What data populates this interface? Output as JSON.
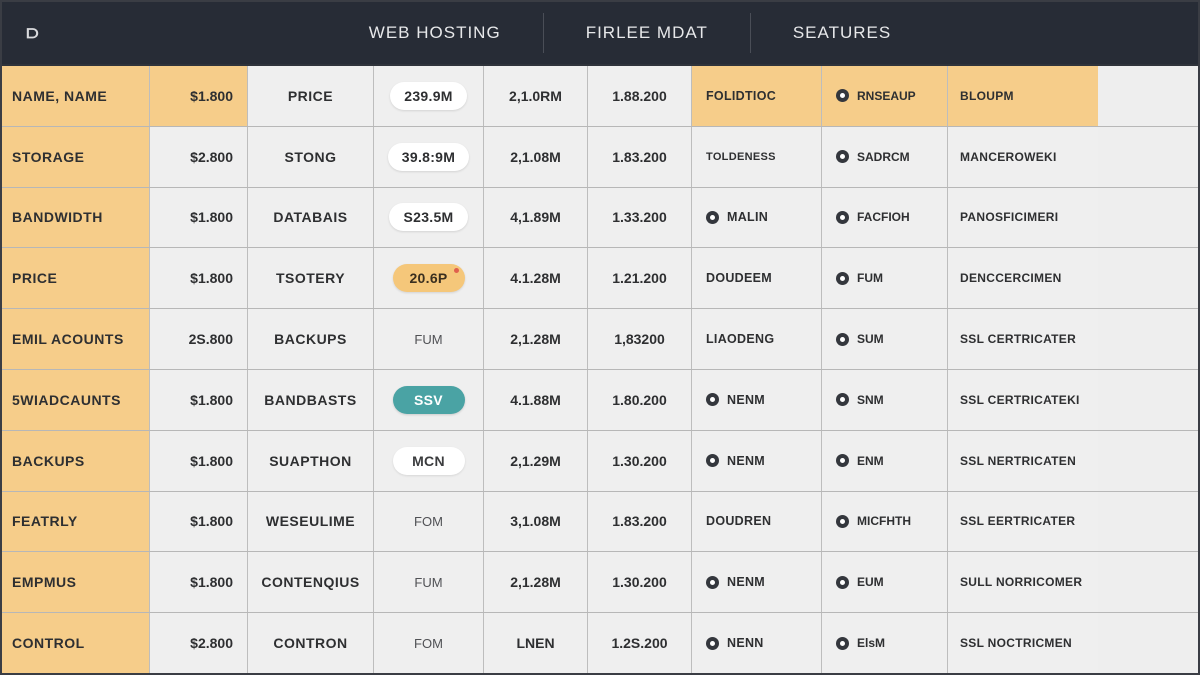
{
  "header": {
    "logo_text": "⫐",
    "nav": [
      "WEB HOSTING",
      "FIRLEE MDAT",
      "SEATURES"
    ]
  },
  "colors": {
    "header_bg": "#272c36",
    "row_label_bg": "#f6cd8a",
    "cell_bg": "#efefef",
    "border": "#bdbdbd",
    "pill_white": "#ffffff",
    "pill_amber": "#f5c77a",
    "pill_teal": "#4aa3a4",
    "dot": "#34373d"
  },
  "table": {
    "columns": 9,
    "rows": [
      {
        "c0": "NAME, NAME",
        "c1": "$1.800",
        "c2": "PRICE",
        "c3": {
          "text": "239.9M",
          "pill": "white"
        },
        "c4": "2,1.0RM",
        "c5": "1.88.200",
        "c6": {
          "text": "FOLIDTIOC",
          "dot": false
        },
        "c7": {
          "text": "RNSEAUP",
          "dot": true
        },
        "c8": "BLOUPM",
        "header": true
      },
      {
        "c0": "STORAGE",
        "c1": "$2.800",
        "c2": "STONG",
        "c3": {
          "text": "39.8:9M",
          "pill": "white"
        },
        "c4": "2,1.08M",
        "c5": "1.83.200",
        "c6": {
          "text": "TOLDENESS",
          "dot": false,
          "small": true
        },
        "c7": {
          "text": "SADRCM",
          "dot": true
        },
        "c8": "MANCEROWEKI"
      },
      {
        "c0": "BANDWIDTH",
        "c1": "$1.800",
        "c2": "DATABAIS",
        "c3": {
          "text": "S23.5M",
          "pill": "white"
        },
        "c4": "4,1.89M",
        "c5": "1.33.200",
        "c6": {
          "text": "MALIN",
          "dot": true
        },
        "c7": {
          "text": "FACFIOH",
          "dot": true
        },
        "c8": "PANOSFICIMERI"
      },
      {
        "c0": "PRICE",
        "c1": "$1.800",
        "c2": "TSOTERY",
        "c3": {
          "text": "20.6P",
          "pill": "amber"
        },
        "c4": "4.1.28M",
        "c5": "1.21.200",
        "c6": {
          "text": "DOUDEEM",
          "dot": false
        },
        "c7": {
          "text": "FUM",
          "dot": true
        },
        "c8": "DENCCERCIMEN"
      },
      {
        "c0": "EMIL ACOUNTS",
        "c1": "2S.800",
        "c2": "BACKUPS",
        "c3": {
          "text": "FUM",
          "pill": "none"
        },
        "c4": "2,1.28M",
        "c5": "1,83200",
        "c6": {
          "text": "LIAODENG",
          "dot": false
        },
        "c7": {
          "text": "SUM",
          "dot": true
        },
        "c8": "SSL CERTRICATER"
      },
      {
        "c0": "5WIADCAUNTS",
        "c1": "$1.800",
        "c2": "BANDBASTS",
        "c3": {
          "text": "SSV",
          "pill": "teal"
        },
        "c4": "4.1.88M",
        "c5": "1.80.200",
        "c6": {
          "text": "NENM",
          "dot": true
        },
        "c7": {
          "text": "SNM",
          "dot": true
        },
        "c8": "SSL CERTRICATEKI"
      },
      {
        "c0": "BACKUPS",
        "c1": "$1.800",
        "c2": "SUAPTHON",
        "c3": {
          "text": "MCN",
          "pill": "plain"
        },
        "c4": "2,1.29M",
        "c5": "1.30.200",
        "c6": {
          "text": "NENM",
          "dot": true
        },
        "c7": {
          "text": "ENM",
          "dot": true
        },
        "c8": "SSL NERTRICATEN"
      },
      {
        "c0": "FEATRLY",
        "c1": "$1.800",
        "c2": "WESEULIME",
        "c3": {
          "text": "FOM",
          "pill": "none"
        },
        "c4": "3,1.08M",
        "c5": "1.83.200",
        "c6": {
          "text": "DOUDREN",
          "dot": false
        },
        "c7": {
          "text": "MICFHTH",
          "dot": true
        },
        "c8": "SSL EERTRICATER"
      },
      {
        "c0": "EMPMUS",
        "c1": "$1.800",
        "c2": "CONTENQIUS",
        "c3": {
          "text": "FUM",
          "pill": "none"
        },
        "c4": "2,1.28M",
        "c5": "1.30.200",
        "c6": {
          "text": "NENM",
          "dot": true
        },
        "c7": {
          "text": "EUM",
          "dot": true
        },
        "c8": "SULL NORRICOMER"
      },
      {
        "c0": "CONTROL",
        "c1": "$2.800",
        "c2": "CONTRON",
        "c3": {
          "text": "FOM",
          "pill": "none"
        },
        "c4": "LNEN",
        "c5": "1.2S.200",
        "c6": {
          "text": "NENN",
          "dot": true
        },
        "c7": {
          "text": "ElsM",
          "dot": true
        },
        "c8": "SSL NOCTRICMEN"
      }
    ]
  }
}
